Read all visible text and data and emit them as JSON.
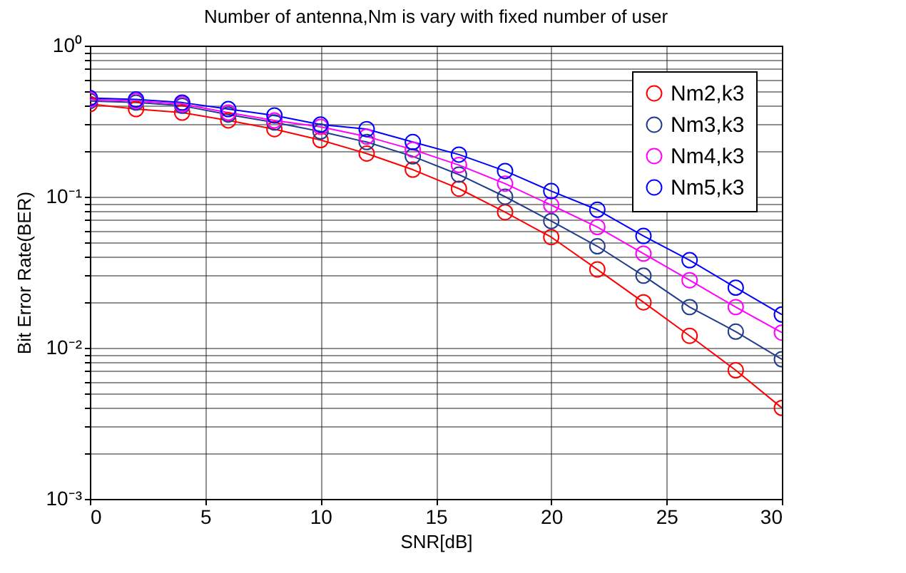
{
  "chart_data": {
    "type": "line",
    "title": "Number of antenna,Nm is vary with fixed number of user",
    "xlabel": "SNR[dB]",
    "ylabel": "Bit Error Rate(BER)",
    "x": [
      0,
      2,
      4,
      6,
      8,
      10,
      12,
      14,
      16,
      18,
      20,
      22,
      24,
      26,
      28,
      30
    ],
    "series": [
      {
        "name": "Nm2,k3",
        "color": "#ff0000",
        "values": [
          0.41,
          0.38,
          0.36,
          0.32,
          0.28,
          0.237,
          0.193,
          0.151,
          0.113,
          0.079,
          0.054,
          0.033,
          0.02,
          0.012,
          0.0071,
          0.004
        ]
      },
      {
        "name": "Nm3,k3",
        "color": "#1f3c8f",
        "values": [
          0.43,
          0.42,
          0.4,
          0.35,
          0.31,
          0.27,
          0.23,
          0.185,
          0.14,
          0.1,
          0.069,
          0.047,
          0.03,
          0.0186,
          0.0128,
          0.0084
        ]
      },
      {
        "name": "Nm4,k3",
        "color": "#ff00ff",
        "values": [
          0.44,
          0.43,
          0.41,
          0.36,
          0.32,
          0.29,
          0.25,
          0.205,
          0.162,
          0.122,
          0.088,
          0.063,
          0.042,
          0.028,
          0.0186,
          0.0126
        ]
      },
      {
        "name": "Nm5,k3",
        "color": "#0000ff",
        "values": [
          0.45,
          0.44,
          0.42,
          0.38,
          0.345,
          0.3,
          0.28,
          0.23,
          0.19,
          0.148,
          0.109,
          0.082,
          0.055,
          0.038,
          0.025,
          0.0166
        ]
      }
    ],
    "xlim": [
      0,
      30
    ],
    "xticks": [
      0,
      5,
      10,
      15,
      20,
      25,
      30
    ],
    "ylim": [
      0.001,
      1
    ],
    "log": "y",
    "yticks": [
      {
        "value": 0.001,
        "label": "10⁻³"
      },
      {
        "value": 0.002,
        "label": null
      },
      {
        "value": 0.003,
        "label": null
      },
      {
        "value": 0.004,
        "label": null
      },
      {
        "value": 0.005,
        "label": null
      },
      {
        "value": 0.006,
        "label": null
      },
      {
        "value": 0.007,
        "label": null
      },
      {
        "value": 0.008,
        "label": null
      },
      {
        "value": 0.009,
        "label": null
      },
      {
        "value": 0.01,
        "label": "10⁻²"
      },
      {
        "value": 0.02,
        "label": null
      },
      {
        "value": 0.03,
        "label": null
      },
      {
        "value": 0.04,
        "label": null
      },
      {
        "value": 0.05,
        "label": null
      },
      {
        "value": 0.06,
        "label": null
      },
      {
        "value": 0.07,
        "label": null
      },
      {
        "value": 0.08,
        "label": null
      },
      {
        "value": 0.09,
        "label": null
      },
      {
        "value": 0.1,
        "label": "10⁻¹"
      },
      {
        "value": 0.2,
        "label": null
      },
      {
        "value": 0.3,
        "label": null
      },
      {
        "value": 0.4,
        "label": null
      },
      {
        "value": 0.5,
        "label": null
      },
      {
        "value": 0.6,
        "label": null
      },
      {
        "value": 0.7,
        "label": null
      },
      {
        "value": 0.8,
        "label": null
      },
      {
        "value": 0.9,
        "label": null
      },
      {
        "value": 1,
        "label": "10⁰"
      }
    ],
    "grid": true,
    "legend": "top right",
    "marker": "circle",
    "line_style": "solid"
  }
}
